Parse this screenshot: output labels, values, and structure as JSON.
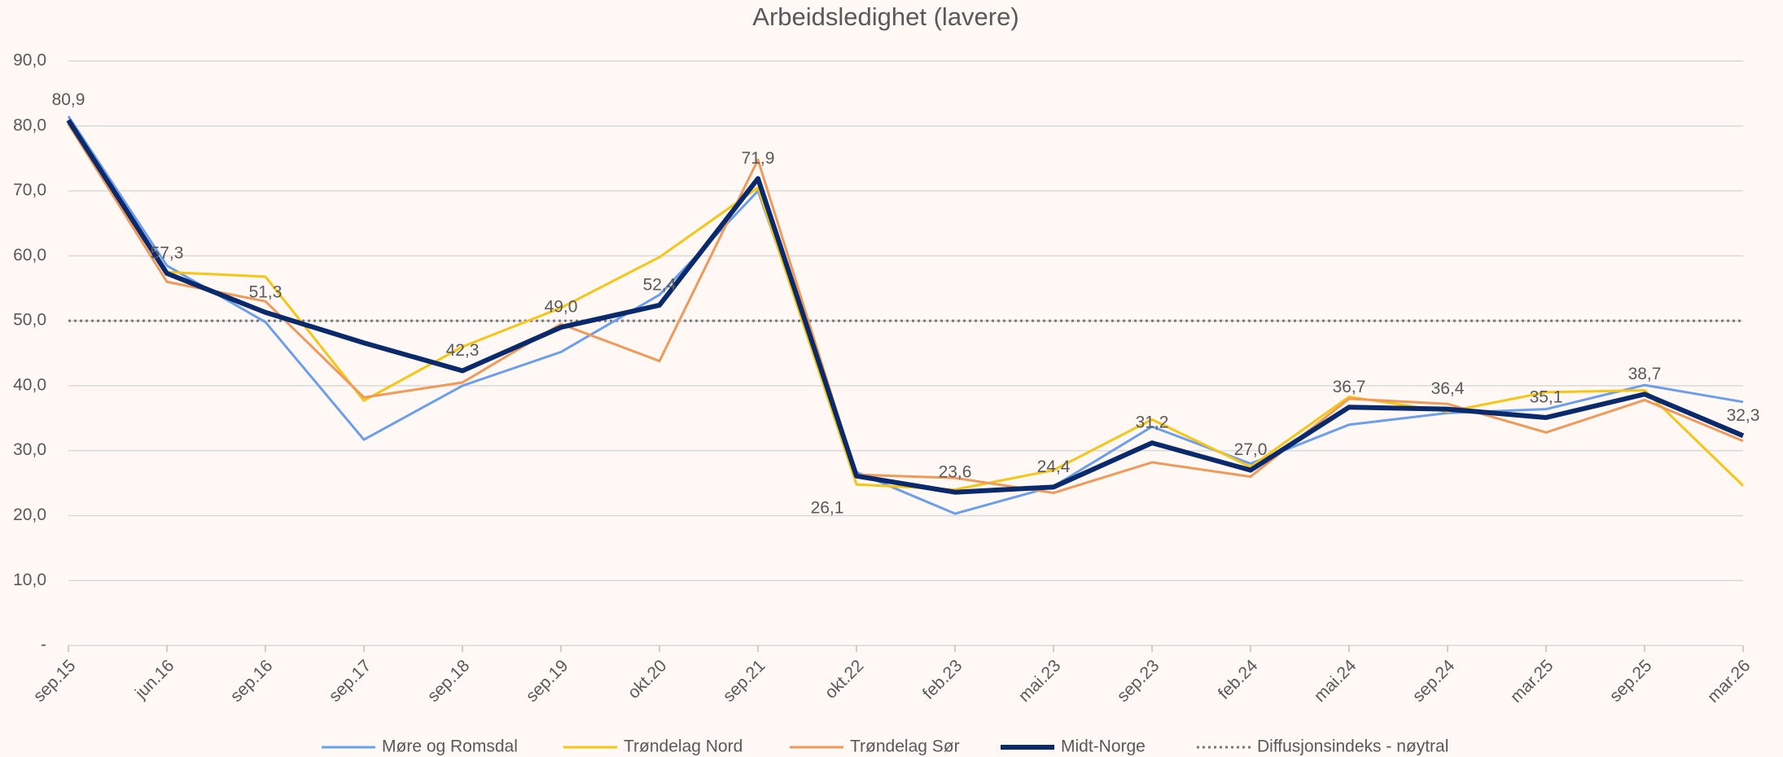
{
  "chart_data": {
    "type": "line",
    "title": "Arbeidsledighet (lavere)",
    "categories": [
      "sep.15",
      "jun.16",
      "sep.16",
      "sep.17",
      "sep.18",
      "sep.19",
      "okt.20",
      "sep.21",
      "okt.22",
      "feb.23",
      "mai.23",
      "sep.23",
      "feb.24",
      "mai.24",
      "sep.24",
      "mar.25",
      "sep.25",
      "mar.26"
    ],
    "series": [
      {
        "name": "Møre og Romsdal",
        "color": "#6d9eeb",
        "values": [
          81.5,
          58.5,
          49.8,
          31.7,
          40.0,
          45.2,
          54.0,
          70.0,
          26.7,
          20.3,
          24.5,
          33.7,
          28.0,
          34.0,
          35.8,
          36.4,
          40.1,
          37.5
        ]
      },
      {
        "name": "Trøndelag Nord",
        "color": "#f5c518",
        "values": [
          80.5,
          57.5,
          56.8,
          37.7,
          46.0,
          52.0,
          59.8,
          70.5,
          24.8,
          24.0,
          27.0,
          34.8,
          27.5,
          38.3,
          36.0,
          39.0,
          39.3,
          24.6
        ]
      },
      {
        "name": "Trøndelag Sør",
        "color": "#ef9a5a",
        "values": [
          80.3,
          56.0,
          53.0,
          38.2,
          40.5,
          49.5,
          43.8,
          74.8,
          26.3,
          25.8,
          23.5,
          28.2,
          26.0,
          38.0,
          37.2,
          32.8,
          37.8,
          31.5
        ]
      },
      {
        "name": "Midt-Norge",
        "color": "#0b2a6b",
        "values": [
          80.9,
          57.3,
          51.3,
          46.6,
          42.3,
          49.0,
          52.4,
          71.9,
          26.1,
          23.6,
          24.4,
          31.2,
          27.0,
          36.7,
          36.4,
          35.1,
          38.7,
          32.3
        ],
        "value_labels": [
          "80,9",
          "57,3",
          "51,3",
          null,
          "42,3",
          "49,0",
          "52,4",
          "71,9",
          "26,1",
          "23,6",
          "24,4",
          "31,2",
          "27,0",
          "36,7",
          "36,4",
          "35,1",
          "38,7",
          "32,3"
        ]
      },
      {
        "name": "Diffusjonsindeks - nøytral",
        "color": "#777777",
        "dotted": true,
        "values": [
          50,
          50,
          50,
          50,
          50,
          50,
          50,
          50,
          50,
          50,
          50,
          50,
          50,
          50,
          50,
          50,
          50,
          50
        ]
      }
    ],
    "ylim": [
      0,
      90
    ],
    "yticks": [
      {
        "value": 0,
        "label": "-"
      },
      {
        "value": 10,
        "label": "10,0"
      },
      {
        "value": 20,
        "label": "20,0"
      },
      {
        "value": 30,
        "label": "30,0"
      },
      {
        "value": 40,
        "label": "40,0"
      },
      {
        "value": 50,
        "label": "50,0"
      },
      {
        "value": 60,
        "label": "60,0"
      },
      {
        "value": 70,
        "label": "70,0"
      },
      {
        "value": 80,
        "label": "80,0"
      },
      {
        "value": 90,
        "label": "90,0"
      }
    ],
    "grid": true,
    "legend": "bottom"
  }
}
